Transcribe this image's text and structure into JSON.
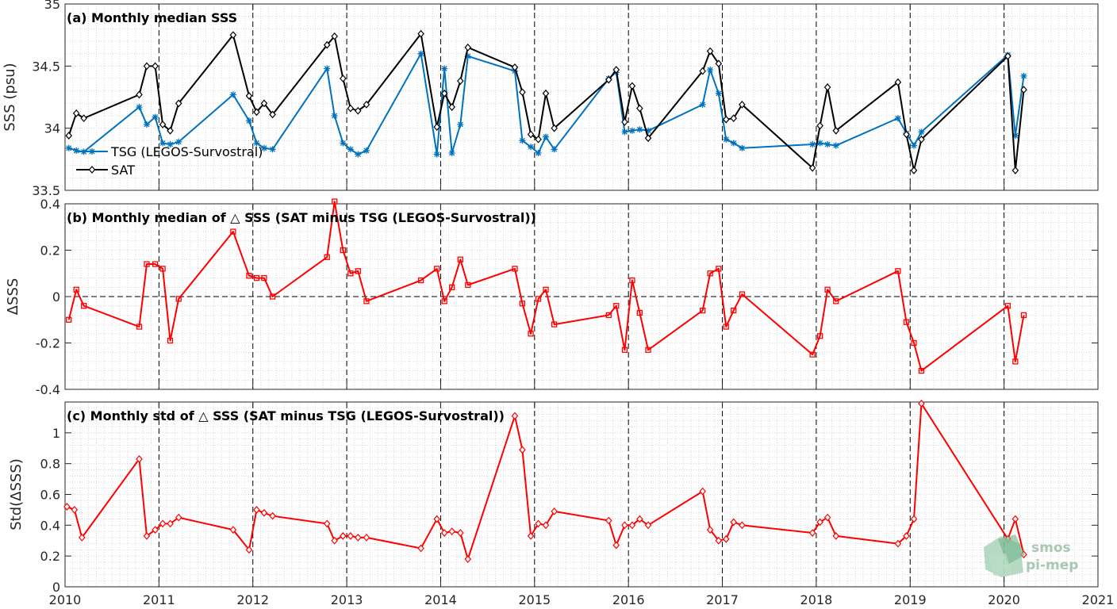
{
  "chart_data": [
    {
      "type": "line",
      "title": "(a) Monthly median SSS",
      "ylabel": "SSS (psu)",
      "xlabel": "",
      "xlim": [
        2010,
        2021
      ],
      "ylim": [
        33.5,
        35
      ],
      "yticks": [
        33.5,
        34,
        34.5,
        35
      ],
      "ytick_labels": [
        "33.5",
        "34",
        "34.5",
        "35"
      ],
      "xticks": [
        2010,
        2011,
        2012,
        2013,
        2014,
        2015,
        2016,
        2017,
        2018,
        2019,
        2020,
        2021
      ],
      "grid": "minor dotted, year dashed",
      "legend_position": "lower-left",
      "series": [
        {
          "name": "TSG (LEGOS-Survostral)",
          "color": "#0072bd",
          "marker": "asterisk",
          "x": [
            2010.04,
            2010.12,
            2010.2,
            2010.79,
            2010.87,
            2010.96,
            2011.04,
            2011.12,
            2011.21,
            2011.79,
            2011.96,
            2012.04,
            2012.12,
            2012.21,
            2012.79,
            2012.87,
            2012.96,
            2013.04,
            2013.12,
            2013.21,
            2013.79,
            2013.96,
            2014.04,
            2014.12,
            2014.21,
            2014.29,
            2014.79,
            2014.87,
            2014.96,
            2015.04,
            2015.12,
            2015.21,
            2015.79,
            2015.87,
            2015.96,
            2016.04,
            2016.12,
            2016.21,
            2016.79,
            2016.87,
            2016.96,
            2017.04,
            2017.12,
            2017.21,
            2017.96,
            2018.04,
            2018.12,
            2018.21,
            2018.87,
            2018.96,
            2019.04,
            2019.12,
            2020.04,
            2020.12,
            2020.21
          ],
          "values": [
            33.84,
            33.82,
            33.81,
            34.17,
            34.03,
            34.09,
            33.88,
            33.87,
            33.89,
            34.27,
            34.06,
            33.88,
            33.84,
            33.83,
            34.48,
            34.1,
            33.88,
            33.83,
            33.79,
            33.82,
            34.6,
            33.79,
            34.48,
            33.8,
            34.03,
            34.58,
            34.46,
            33.9,
            33.85,
            33.8,
            33.93,
            33.83,
            34.4,
            34.45,
            33.97,
            33.98,
            33.99,
            33.98,
            34.19,
            34.47,
            34.28,
            33.91,
            33.88,
            33.84,
            33.87,
            33.88,
            33.87,
            33.86,
            34.08,
            33.96,
            33.86,
            33.97,
            34.59,
            33.94,
            34.42
          ]
        },
        {
          "name": "SAT",
          "color": "#000000",
          "marker": "diamond",
          "x": [
            2010.04,
            2010.12,
            2010.2,
            2010.79,
            2010.87,
            2010.96,
            2011.04,
            2011.12,
            2011.21,
            2011.79,
            2011.96,
            2012.04,
            2012.12,
            2012.21,
            2012.79,
            2012.87,
            2012.96,
            2013.04,
            2013.12,
            2013.21,
            2013.79,
            2013.96,
            2014.04,
            2014.12,
            2014.21,
            2014.29,
            2014.79,
            2014.87,
            2014.96,
            2015.04,
            2015.12,
            2015.21,
            2015.79,
            2015.87,
            2015.96,
            2016.04,
            2016.12,
            2016.21,
            2016.79,
            2016.87,
            2016.96,
            2017.04,
            2017.12,
            2017.21,
            2017.96,
            2018.04,
            2018.12,
            2018.21,
            2018.87,
            2018.96,
            2019.04,
            2019.12,
            2020.04,
            2020.12,
            2020.21
          ],
          "values": [
            33.94,
            34.12,
            34.08,
            34.27,
            34.5,
            34.5,
            34.03,
            33.98,
            34.2,
            34.75,
            34.26,
            34.13,
            34.2,
            34.11,
            34.67,
            34.74,
            34.4,
            34.16,
            34.14,
            34.19,
            34.76,
            34.01,
            34.28,
            34.17,
            34.38,
            34.65,
            34.49,
            34.29,
            33.95,
            33.91,
            34.28,
            34.0,
            34.39,
            34.47,
            34.05,
            34.34,
            34.16,
            33.92,
            34.46,
            34.62,
            34.52,
            34.07,
            34.08,
            34.19,
            33.68,
            34.02,
            34.33,
            33.98,
            34.37,
            33.95,
            33.66,
            33.91,
            34.58,
            33.66,
            34.31
          ]
        }
      ]
    },
    {
      "type": "line",
      "title": "(b) Monthly median of △ SSS (SAT minus TSG (LEGOS-Survostral))",
      "ylabel": "ΔSSS",
      "xlabel": "",
      "xlim": [
        2010,
        2021
      ],
      "ylim": [
        -0.4,
        0.4
      ],
      "yticks": [
        -0.4,
        -0.2,
        0,
        0.2,
        0.4
      ],
      "ytick_labels": [
        "-0.4",
        "-0.2",
        "0",
        "0.2",
        "0.4"
      ],
      "reference_line": 0,
      "series": [
        {
          "color": "#ff0000",
          "marker": "square",
          "x": [
            2010.04,
            2010.12,
            2010.2,
            2010.79,
            2010.87,
            2010.96,
            2011.04,
            2011.12,
            2011.21,
            2011.79,
            2011.96,
            2012.04,
            2012.12,
            2012.21,
            2012.79,
            2012.87,
            2012.96,
            2013.04,
            2013.12,
            2013.21,
            2013.79,
            2013.96,
            2014.04,
            2014.12,
            2014.21,
            2014.29,
            2014.79,
            2014.87,
            2014.96,
            2015.04,
            2015.12,
            2015.21,
            2015.79,
            2015.87,
            2015.96,
            2016.04,
            2016.12,
            2016.21,
            2016.79,
            2016.87,
            2016.96,
            2017.04,
            2017.12,
            2017.21,
            2017.96,
            2018.04,
            2018.12,
            2018.21,
            2018.87,
            2018.96,
            2019.04,
            2019.12,
            2020.04,
            2020.12,
            2020.21
          ],
          "values": [
            -0.1,
            0.03,
            -0.04,
            -0.13,
            0.14,
            0.14,
            0.12,
            -0.19,
            -0.01,
            0.28,
            0.09,
            0.08,
            0.08,
            0.0,
            0.17,
            0.41,
            0.2,
            0.1,
            0.11,
            -0.02,
            0.07,
            0.12,
            -0.02,
            0.04,
            0.16,
            0.05,
            0.12,
            -0.03,
            -0.16,
            -0.01,
            0.03,
            -0.12,
            -0.08,
            -0.04,
            -0.23,
            0.07,
            -0.07,
            -0.23,
            -0.06,
            0.1,
            0.12,
            -0.13,
            -0.06,
            0.01,
            -0.25,
            -0.17,
            0.03,
            -0.02,
            0.11,
            -0.11,
            -0.2,
            -0.32,
            -0.04,
            -0.28,
            -0.08
          ]
        }
      ]
    },
    {
      "type": "line",
      "title": "(c) Monthly std of △ SSS (SAT minus TSG (LEGOS-Survostral))",
      "ylabel": "Std(ΔSSS)",
      "xlabel": "",
      "xlim": [
        2010,
        2021
      ],
      "ylim": [
        0,
        1.2
      ],
      "yticks": [
        0,
        0.2,
        0.4,
        0.6,
        0.8,
        1
      ],
      "ytick_labels": [
        "0",
        "0.2",
        "0.4",
        "0.6",
        "0.8",
        "1"
      ],
      "xtick_labels": [
        "2010",
        "2011",
        "2012",
        "2013",
        "2014",
        "2015",
        "2016",
        "2017",
        "2018",
        "2019",
        "2020",
        "2021"
      ],
      "series": [
        {
          "color": "#ff0000",
          "marker": "diamond",
          "x": [
            2010.02,
            2010.1,
            2010.18,
            2010.79,
            2010.87,
            2010.96,
            2011.04,
            2011.12,
            2011.21,
            2011.79,
            2011.96,
            2012.04,
            2012.12,
            2012.21,
            2012.79,
            2012.87,
            2012.96,
            2013.04,
            2013.12,
            2013.21,
            2013.79,
            2013.96,
            2014.04,
            2014.12,
            2014.21,
            2014.29,
            2014.79,
            2014.87,
            2014.96,
            2015.04,
            2015.12,
            2015.21,
            2015.79,
            2015.87,
            2015.96,
            2016.04,
            2016.12,
            2016.21,
            2016.79,
            2016.87,
            2016.96,
            2017.04,
            2017.12,
            2017.21,
            2017.96,
            2018.04,
            2018.12,
            2018.21,
            2018.87,
            2018.96,
            2019.04,
            2019.12,
            2020.04,
            2020.12,
            2020.21
          ],
          "values": [
            0.52,
            0.5,
            0.32,
            0.83,
            0.33,
            0.37,
            0.41,
            0.41,
            0.45,
            0.37,
            0.24,
            0.5,
            0.48,
            0.46,
            0.41,
            0.3,
            0.33,
            0.33,
            0.32,
            0.32,
            0.25,
            0.44,
            0.35,
            0.36,
            0.35,
            0.18,
            1.11,
            0.89,
            0.33,
            0.41,
            0.4,
            0.49,
            0.43,
            0.27,
            0.4,
            0.4,
            0.44,
            0.4,
            0.62,
            0.37,
            0.3,
            0.31,
            0.42,
            0.4,
            0.35,
            0.42,
            0.45,
            0.33,
            0.28,
            0.33,
            0.44,
            1.19,
            0.31,
            0.44,
            0.21
          ]
        }
      ]
    }
  ],
  "logo": {
    "line1": "smos",
    "line2": "pi-mep"
  }
}
